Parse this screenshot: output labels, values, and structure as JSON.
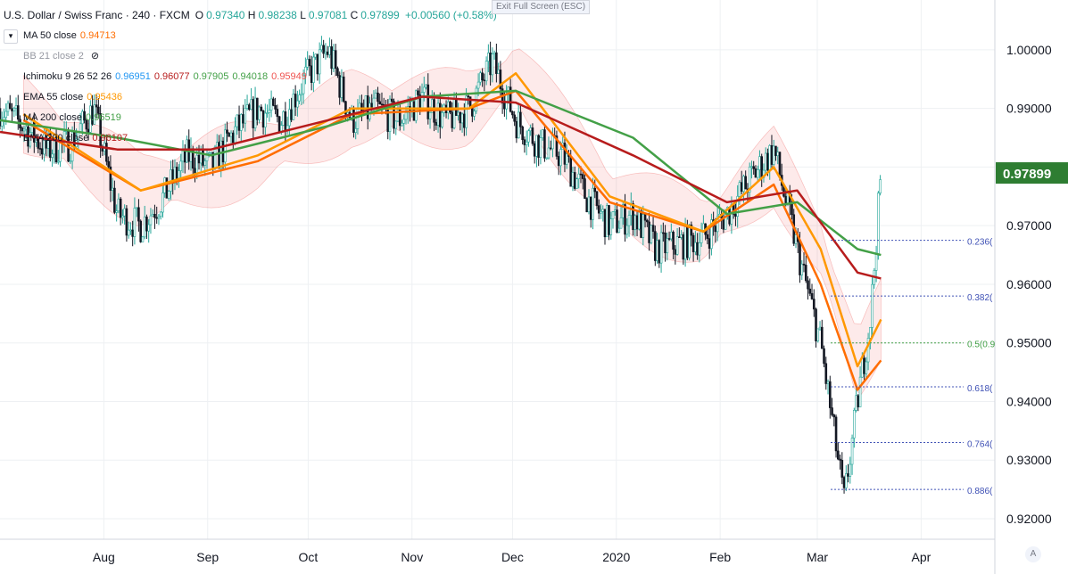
{
  "header": {
    "symbol": "U.S. Dollar / Swiss Franc · 240 · FXCM",
    "open": "0.97340",
    "high": "0.98238",
    "low": "0.97081",
    "close": "0.97899",
    "change": "+0.00560 (+0.58%)",
    "exit_fullscreen": "Exit Full Screen (ESC)"
  },
  "indicators": [
    {
      "name": "MA 50 close",
      "values": [
        "0.94713"
      ],
      "colors": [
        "#ff6d00"
      ]
    },
    {
      "name": "BB 21 close 2",
      "values": [],
      "colors": [],
      "hidden": true
    },
    {
      "name": "Ichimoku 9 26 52 26",
      "values": [
        "0.96951",
        "0.96077",
        "0.97905",
        "0.94018",
        "0.95949"
      ],
      "colors": [
        "#2196f3",
        "#b71c1c",
        "#43a047",
        "#43a047",
        "#ef5350"
      ]
    },
    {
      "name": "EMA 55 close",
      "values": [
        "0.95436"
      ],
      "colors": [
        "#ff9800"
      ]
    },
    {
      "name": "MA 200 close",
      "values": [
        "0.96519"
      ],
      "colors": [
        "#43a047"
      ]
    },
    {
      "name": "EMA 200 close",
      "values": [
        "0.96107"
      ],
      "colors": [
        "#b71c1c"
      ]
    }
  ],
  "colors": {
    "up": "#26a69a",
    "down": "#131722",
    "grid": "#eef0f3"
  },
  "chart_data": {
    "type": "line",
    "title": "U.S. Dollar / Swiss Franc · 240 · FXCM",
    "x_ticks": [
      "Aug",
      "Sep",
      "Oct",
      "Nov",
      "Dec",
      "2020",
      "Feb",
      "Mar",
      "Apr"
    ],
    "y_ticks": [
      "0.92000",
      "0.93000",
      "0.94000",
      "0.95000",
      "0.96000",
      "0.97000",
      "0.98000",
      "0.99000",
      "1.00000"
    ],
    "ylim": [
      0.9165,
      1.0085
    ],
    "last_price": "0.97899",
    "fib_levels": [
      {
        "label": "0.236(",
        "price": 0.9675
      },
      {
        "label": "0.382(",
        "price": 0.958
      },
      {
        "label": "0.5(0.9",
        "price": 0.95
      },
      {
        "label": "0.618(",
        "price": 0.9425
      },
      {
        "label": "0.764(",
        "price": 0.933
      },
      {
        "label": "0.886(",
        "price": 0.925
      }
    ],
    "price_path": [
      [
        "2019-07-01",
        0.99
      ],
      [
        "2019-07-08",
        0.987
      ],
      [
        "2019-07-15",
        0.983
      ],
      [
        "2019-07-22",
        0.984
      ],
      [
        "2019-07-29",
        0.99
      ],
      [
        "2019-08-05",
        0.972
      ],
      [
        "2019-08-12",
        0.97
      ],
      [
        "2019-08-19",
        0.975
      ],
      [
        "2019-08-26",
        0.982
      ],
      [
        "2019-09-02",
        0.98
      ],
      [
        "2019-09-09",
        0.986
      ],
      [
        "2019-09-16",
        0.99
      ],
      [
        "2019-09-23",
        0.988
      ],
      [
        "2019-09-30",
        0.995
      ],
      [
        "2019-10-07",
        1.0
      ],
      [
        "2019-10-14",
        0.988
      ],
      [
        "2019-10-21",
        0.99
      ],
      [
        "2019-10-28",
        0.988
      ],
      [
        "2019-11-04",
        0.992
      ],
      [
        "2019-11-11",
        0.988
      ],
      [
        "2019-11-18",
        0.99
      ],
      [
        "2019-11-25",
        0.998
      ],
      [
        "2019-12-02",
        0.988
      ],
      [
        "2019-12-09",
        0.984
      ],
      [
        "2019-12-16",
        0.982
      ],
      [
        "2019-12-23",
        0.975
      ],
      [
        "2019-12-30",
        0.97
      ],
      [
        "2020-01-06",
        0.972
      ],
      [
        "2020-01-13",
        0.966
      ],
      [
        "2020-01-20",
        0.967
      ],
      [
        "2020-01-27",
        0.968
      ],
      [
        "2020-02-03",
        0.972
      ],
      [
        "2020-02-10",
        0.978
      ],
      [
        "2020-02-17",
        0.983
      ],
      [
        "2020-02-24",
        0.966
      ],
      [
        "2020-03-02",
        0.95
      ],
      [
        "2020-03-09",
        0.923
      ],
      [
        "2020-03-13",
        0.94
      ],
      [
        "2020-03-17",
        0.955
      ],
      [
        "2020-03-20",
        0.979
      ]
    ],
    "series": [
      {
        "name": "MA 50 close",
        "color": "#ff6d00",
        "points": [
          [
            "2019-07-08",
            0.988
          ],
          [
            "2019-08-12",
            0.976
          ],
          [
            "2019-09-16",
            0.981
          ],
          [
            "2019-10-14",
            0.989
          ],
          [
            "2019-11-18",
            0.99
          ],
          [
            "2019-12-02",
            0.993
          ],
          [
            "2019-12-30",
            0.974
          ],
          [
            "2020-01-27",
            0.969
          ],
          [
            "2020-02-17",
            0.977
          ],
          [
            "2020-03-02",
            0.96
          ],
          [
            "2020-03-13",
            0.942
          ],
          [
            "2020-03-20",
            0.947
          ]
        ]
      },
      {
        "name": "EMA 55 close",
        "color": "#ff9800",
        "points": [
          [
            "2019-07-08",
            0.989
          ],
          [
            "2019-08-12",
            0.976
          ],
          [
            "2019-09-16",
            0.982
          ],
          [
            "2019-10-14",
            0.99
          ],
          [
            "2019-11-18",
            0.99
          ],
          [
            "2019-12-02",
            0.996
          ],
          [
            "2019-12-30",
            0.975
          ],
          [
            "2020-01-27",
            0.969
          ],
          [
            "2020-02-17",
            0.98
          ],
          [
            "2020-03-02",
            0.966
          ],
          [
            "2020-03-13",
            0.946
          ],
          [
            "2020-03-20",
            0.954
          ]
        ]
      },
      {
        "name": "MA 200 close",
        "color": "#43a047",
        "points": [
          [
            "2019-07-01",
            0.988
          ],
          [
            "2019-08-05",
            0.985
          ],
          [
            "2019-09-02",
            0.982
          ],
          [
            "2019-10-07",
            0.987
          ],
          [
            "2019-11-04",
            0.992
          ],
          [
            "2019-12-02",
            0.993
          ],
          [
            "2020-01-06",
            0.985
          ],
          [
            "2020-02-03",
            0.972
          ],
          [
            "2020-02-24",
            0.974
          ],
          [
            "2020-03-13",
            0.966
          ],
          [
            "2020-03-20",
            0.965
          ]
        ]
      },
      {
        "name": "EMA 200 close",
        "color": "#b71c1c",
        "points": [
          [
            "2019-07-01",
            0.986
          ],
          [
            "2019-08-05",
            0.983
          ],
          [
            "2019-09-02",
            0.983
          ],
          [
            "2019-10-07",
            0.988
          ],
          [
            "2019-11-04",
            0.992
          ],
          [
            "2019-12-02",
            0.991
          ],
          [
            "2020-01-06",
            0.982
          ],
          [
            "2020-02-03",
            0.974
          ],
          [
            "2020-02-24",
            0.976
          ],
          [
            "2020-03-13",
            0.962
          ],
          [
            "2020-03-20",
            0.961
          ]
        ]
      }
    ]
  }
}
